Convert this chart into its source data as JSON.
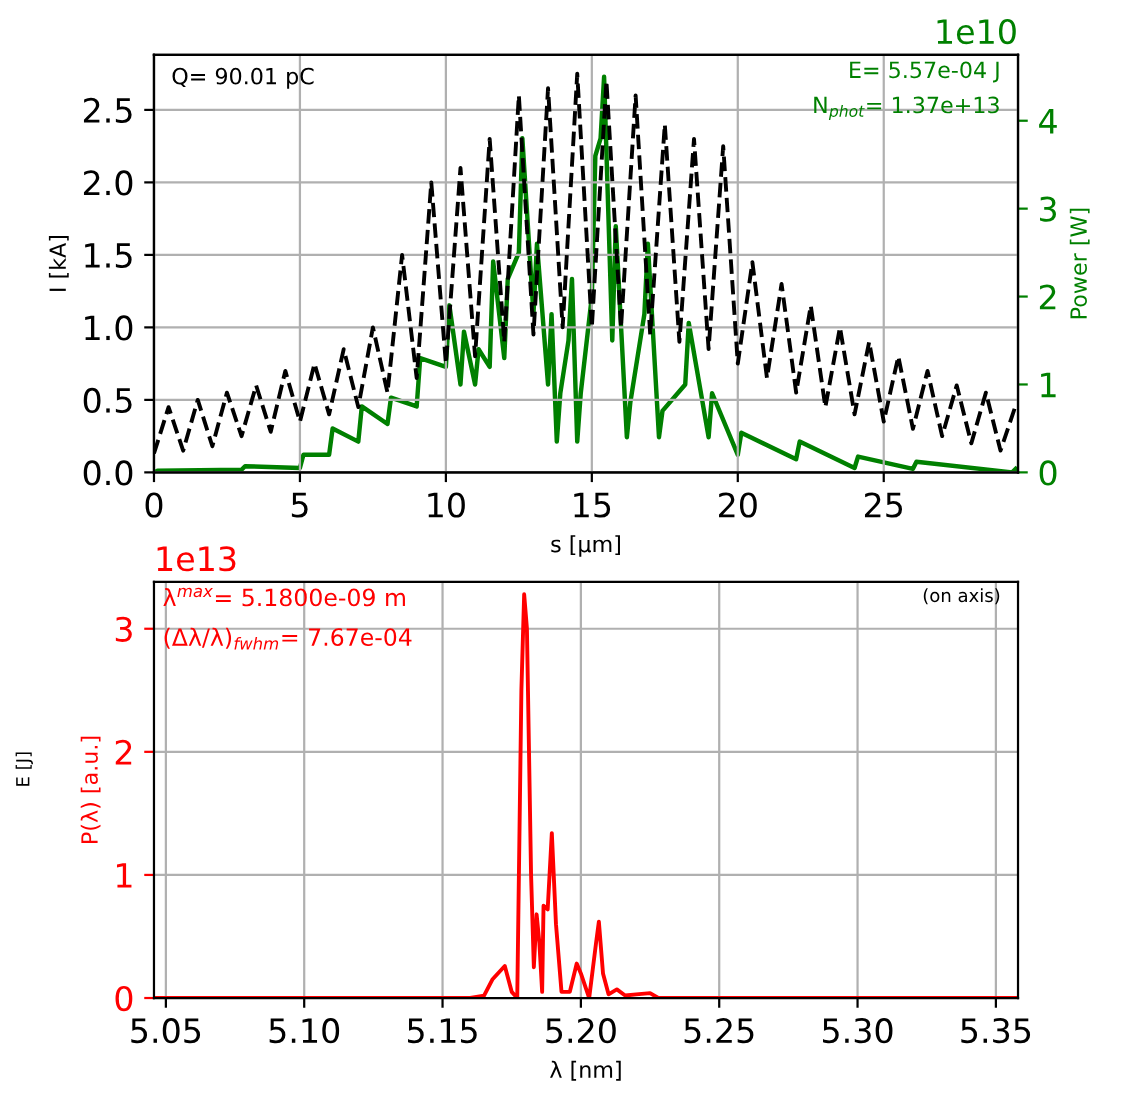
{
  "chart_data": [
    {
      "type": "line",
      "xlabel": "s [μm]",
      "ylabel": "I [kA]",
      "y2label": "Power [W]",
      "annotations": [
        "Q= 90.01 pC",
        "E= 5.57e-04 J",
        "N$_{phot}$= 1.37e+13",
        "1e10"
      ],
      "xlim": [
        0,
        29.6
      ],
      "xticks": [
        0,
        5,
        10,
        15,
        20,
        25
      ],
      "ylim": [
        0,
        2.88
      ],
      "yticks": [
        {
          "value": 0,
          "label": "0.0"
        },
        {
          "value": 0.5,
          "label": "0.5"
        },
        {
          "value": 1,
          "label": "1.0"
        },
        {
          "value": 1.5,
          "label": "1.5"
        },
        {
          "value": 2,
          "label": "2.0"
        },
        {
          "value": 2.5,
          "label": "2.5"
        }
      ],
      "y2lim": [
        0,
        4.75
      ],
      "y2ticks": [
        0,
        1,
        2,
        3,
        4
      ],
      "grid": true,
      "series": [
        {
          "color": "#000000",
          "line_style": "dashed",
          "x": [
            0,
            0.5,
            1,
            1.5,
            2,
            2.5,
            3,
            3.5,
            4,
            4.5,
            5,
            5.5,
            6,
            6.5,
            7,
            7.5,
            8,
            8.5,
            9,
            9.5,
            10,
            10.5,
            11,
            11.5,
            12,
            12.5,
            13,
            13.5,
            14,
            14.5,
            15,
            15.5,
            16,
            16.5,
            17,
            17.5,
            18,
            18.5,
            19,
            19.5,
            20,
            20.5,
            21,
            21.5,
            22,
            22.5,
            23,
            23.5,
            24,
            24.5,
            25,
            25.5,
            26,
            26.5,
            27,
            27.5,
            28,
            28.5,
            29,
            29.5
          ],
          "values": [
            0.13,
            0.45,
            0.15,
            0.5,
            0.18,
            0.55,
            0.25,
            0.6,
            0.28,
            0.7,
            0.35,
            0.75,
            0.4,
            0.85,
            0.45,
            1.0,
            0.55,
            1.5,
            0.65,
            2.0,
            0.75,
            2.1,
            0.8,
            2.3,
            0.9,
            2.6,
            0.95,
            2.65,
            1.0,
            2.75,
            1.0,
            2.7,
            1.0,
            2.6,
            0.95,
            2.4,
            0.9,
            2.3,
            0.85,
            2.25,
            0.75,
            1.45,
            0.65,
            1.3,
            0.55,
            1.15,
            0.45,
            1.0,
            0.4,
            0.9,
            0.35,
            0.8,
            0.3,
            0.7,
            0.25,
            0.6,
            0.2,
            0.55,
            0.15,
            0.45
          ]
        },
        {
          "color": "#008000",
          "axis": "y2",
          "line_style": "solid",
          "x": [
            0,
            0.12,
            3,
            3.12,
            5,
            5.12,
            6,
            6.12,
            7,
            7.12,
            8,
            8.12,
            9,
            9.12,
            10,
            10.12,
            10.5,
            10.62,
            11,
            11.12,
            11.5,
            11.62,
            12,
            12.12,
            12.5,
            12.62,
            13,
            13.12,
            13.5,
            13.62,
            13.8,
            13.92,
            14.2,
            14.32,
            14.5,
            14.62,
            15,
            15.12,
            15.3,
            15.42,
            15.7,
            15.82,
            16.2,
            16.32,
            16.8,
            16.92,
            17.3,
            17.42,
            18.2,
            18.32,
            19,
            19.12,
            20,
            20.12,
            22,
            22.12,
            24,
            24.12,
            26,
            26.12,
            29.4,
            29.52
          ],
          "values": [
            0,
            0.02,
            0.03,
            0.07,
            0.05,
            0.2,
            0.2,
            0.5,
            0.35,
            0.75,
            0.55,
            0.85,
            0.75,
            1.3,
            1.2,
            1.9,
            1.0,
            1.6,
            1.0,
            1.4,
            1.2,
            2.4,
            1.3,
            2.2,
            2.5,
            3.8,
            1.8,
            2.6,
            1.0,
            1.8,
            0.35,
            0.9,
            1.5,
            2.2,
            0.35,
            0.9,
            2.0,
            3.6,
            3.8,
            4.5,
            1.5,
            2.8,
            0.4,
            0.8,
            1.8,
            2.6,
            0.4,
            0.7,
            1.0,
            1.7,
            0.4,
            0.9,
            0.2,
            0.45,
            0.15,
            0.35,
            0.05,
            0.18,
            0.04,
            0.12,
            0,
            0.04
          ]
        }
      ]
    },
    {
      "type": "line",
      "xlabel": "λ [nm]",
      "ylabel": "P(λ) [a.u.]",
      "annotations": [
        "λ$^{max}$= 5.1800e-09 m",
        "(Δλ/λ)$_{fwhm}$= 7.67e-04",
        "(on axis)",
        "1e13",
        "E [J]"
      ],
      "xlim": [
        5.0457,
        5.358
      ],
      "xticks": [
        {
          "value": 5.05,
          "label": "5.05"
        },
        {
          "value": 5.1,
          "label": "5.10"
        },
        {
          "value": 5.15,
          "label": "5.15"
        },
        {
          "value": 5.2,
          "label": "5.20"
        },
        {
          "value": 5.25,
          "label": "5.25"
        },
        {
          "value": 5.3,
          "label": "5.30"
        },
        {
          "value": 5.35,
          "label": "5.35"
        }
      ],
      "ylim": [
        0,
        3.38
      ],
      "yticks": [
        0,
        1,
        2,
        3
      ],
      "grid": true,
      "series": [
        {
          "color": "#ff0000",
          "line_style": "solid",
          "x": [
            5.0457,
            5.16,
            5.165,
            5.168,
            5.1725,
            5.175,
            5.177,
            5.1785,
            5.1795,
            5.1805,
            5.182,
            5.183,
            5.184,
            5.185,
            5.186,
            5.1865,
            5.188,
            5.1895,
            5.191,
            5.193,
            5.196,
            5.1985,
            5.2,
            5.203,
            5.2055,
            5.2065,
            5.208,
            5.21,
            5.213,
            5.216,
            5.22,
            5.225,
            5.228,
            5.358
          ],
          "values": [
            0,
            0,
            0.02,
            0.15,
            0.26,
            0.05,
            0,
            2.5,
            3.28,
            3.0,
            1.0,
            0.25,
            0.68,
            0.45,
            0.05,
            0.75,
            0.72,
            1.34,
            0.6,
            0.05,
            0.05,
            0.28,
            0.2,
            0,
            0.45,
            0.62,
            0.2,
            0.03,
            0.07,
            0.02,
            0.03,
            0.04,
            0,
            0
          ]
        }
      ]
    }
  ]
}
